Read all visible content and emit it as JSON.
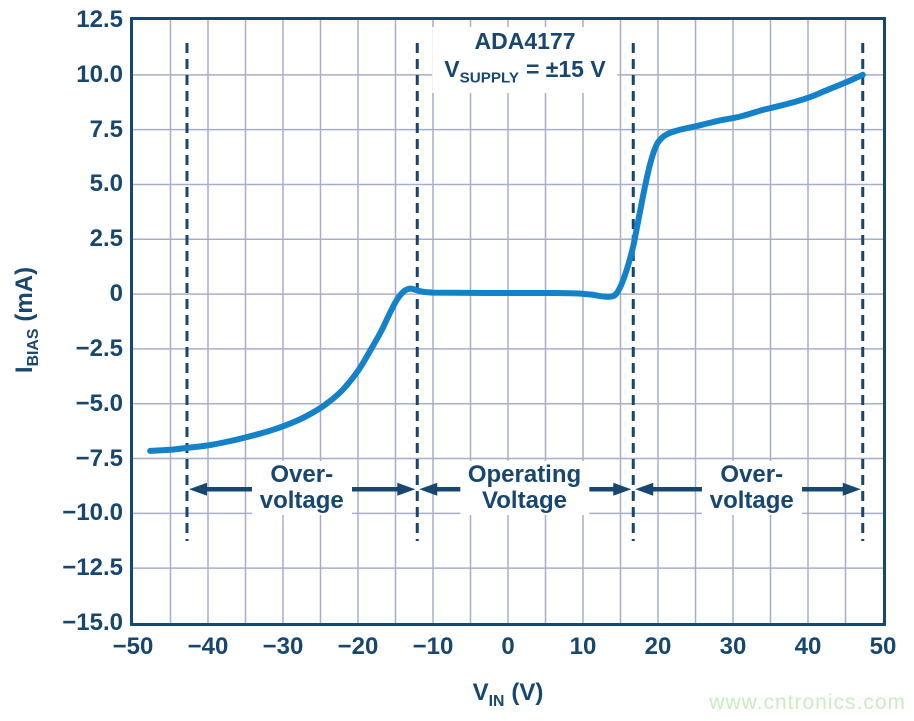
{
  "colors": {
    "navy": "#17476f",
    "curve_blue": "#1482c8",
    "gridline": "#a8aec8",
    "background": "#ffffff",
    "watermark_green": "#c9edc0"
  },
  "watermark": "www.cntronics.com",
  "chart_data": {
    "type": "line",
    "title": "ADA4177",
    "subtitle": {
      "base": "V",
      "sub": "SUPPLY",
      "rest": "=  ±15 V"
    },
    "xlabel": {
      "base": "V",
      "sub": "IN",
      "rest": "(V)"
    },
    "ylabel": {
      "base": "I",
      "sub": "BIAS",
      "rest": "(mA)"
    },
    "xlim": [
      -50,
      50
    ],
    "ylim": [
      -15,
      12.5
    ],
    "x_grid_step": 5,
    "y_grid_step": 2.5,
    "grid": true,
    "legend": "none",
    "x_ticks": [
      {
        "value": -50,
        "label": "−50"
      },
      {
        "value": -40,
        "label": "−40"
      },
      {
        "value": -30,
        "label": "−30"
      },
      {
        "value": -20,
        "label": "−20"
      },
      {
        "value": -10,
        "label": "−10"
      },
      {
        "value": 0,
        "label": "0"
      },
      {
        "value": 10,
        "label": "10"
      },
      {
        "value": 20,
        "label": "20"
      },
      {
        "value": 30,
        "label": "30"
      },
      {
        "value": 40,
        "label": "40"
      },
      {
        "value": 50,
        "label": "50"
      }
    ],
    "y_ticks": [
      {
        "value": 12.5,
        "label": "12.5"
      },
      {
        "value": 10,
        "label": "10.0"
      },
      {
        "value": 7.5,
        "label": "7.5"
      },
      {
        "value": 5,
        "label": "5.0"
      },
      {
        "value": 2.5,
        "label": "2.5"
      },
      {
        "value": 0,
        "label": "0"
      },
      {
        "value": -2.5,
        "label": "−2.5"
      },
      {
        "value": -5,
        "label": "−5.0"
      },
      {
        "value": -7.5,
        "label": "−7.5"
      },
      {
        "value": -10,
        "label": "−10.0"
      },
      {
        "value": -12.5,
        "label": "−12.5"
      },
      {
        "value": -15,
        "label": "−15.0"
      }
    ],
    "series": [
      {
        "name": "input-bias-current",
        "color": "#1482c8",
        "points": [
          [
            -47.7,
            -7.15
          ],
          [
            -45,
            -7.1
          ],
          [
            -42.5,
            -7.0
          ],
          [
            -40,
            -6.9
          ],
          [
            -37,
            -6.7
          ],
          [
            -34,
            -6.45
          ],
          [
            -31,
            -6.15
          ],
          [
            -28,
            -5.75
          ],
          [
            -26,
            -5.4
          ],
          [
            -24,
            -4.95
          ],
          [
            -22,
            -4.35
          ],
          [
            -20,
            -3.5
          ],
          [
            -18.5,
            -2.65
          ],
          [
            -17,
            -1.75
          ],
          [
            -15.8,
            -0.9
          ],
          [
            -14.8,
            -0.25
          ],
          [
            -13.8,
            0.15
          ],
          [
            -13,
            0.25
          ],
          [
            -12.2,
            0.18
          ],
          [
            -11.2,
            0.1
          ],
          [
            -10,
            0.07
          ],
          [
            -7,
            0.06
          ],
          [
            -3,
            0.05
          ],
          [
            0,
            0.05
          ],
          [
            3,
            0.05
          ],
          [
            6,
            0.05
          ],
          [
            9,
            0.03
          ],
          [
            11,
            -0.02
          ],
          [
            12.5,
            -0.1
          ],
          [
            13.6,
            -0.12
          ],
          [
            14.4,
            0.0
          ],
          [
            15.2,
            0.5
          ],
          [
            16,
            1.3
          ],
          [
            16.7,
            2.2
          ],
          [
            17.4,
            3.4
          ],
          [
            18.2,
            4.8
          ],
          [
            19,
            6.0
          ],
          [
            19.8,
            6.8
          ],
          [
            20.6,
            7.15
          ],
          [
            21.6,
            7.35
          ],
          [
            23,
            7.5
          ],
          [
            25,
            7.65
          ],
          [
            28,
            7.9
          ],
          [
            31,
            8.1
          ],
          [
            34,
            8.4
          ],
          [
            37,
            8.65
          ],
          [
            40,
            8.95
          ],
          [
            42.5,
            9.3
          ],
          [
            45,
            9.65
          ],
          [
            47.3,
            10.0
          ]
        ]
      }
    ],
    "dashed_boundaries_v": [
      -42.8,
      -12.1,
      16.7,
      47.3
    ],
    "arrow_y_ma": -8.9,
    "regions": [
      {
        "lines": [
          "Over-",
          "voltage"
        ],
        "from_v": -42.8,
        "to_v": -12.1,
        "center_v": -27.5
      },
      {
        "lines": [
          "Operating",
          "Voltage"
        ],
        "from_v": -12.1,
        "to_v": 16.7,
        "center_v": 2.2
      },
      {
        "lines": [
          "Over-",
          "voltage"
        ],
        "from_v": 16.7,
        "to_v": 47.3,
        "center_v": 32.5
      }
    ]
  }
}
